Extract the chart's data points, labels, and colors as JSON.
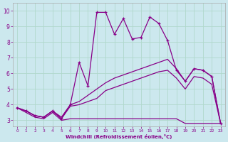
{
  "xlabel": "Windchill (Refroidissement éolien,°C)",
  "xlim": [
    -0.5,
    23.5
  ],
  "ylim": [
    2.6,
    10.5
  ],
  "background_color": "#cce8ee",
  "grid_color": "#b0d8cc",
  "line_color": "#880088",
  "x_ticks": [
    0,
    1,
    2,
    3,
    4,
    5,
    6,
    7,
    8,
    9,
    10,
    11,
    12,
    13,
    14,
    15,
    16,
    17,
    18,
    19,
    20,
    21,
    22,
    23
  ],
  "y_ticks": [
    3,
    4,
    5,
    6,
    7,
    8,
    9,
    10
  ],
  "series_main": [
    3.8,
    3.6,
    3.3,
    3.2,
    3.6,
    3.1,
    4.0,
    6.7,
    5.2,
    9.9,
    9.9,
    8.5,
    9.5,
    8.2,
    8.3,
    9.6,
    9.2,
    8.1,
    6.2,
    5.5,
    6.3,
    6.2,
    5.8,
    2.8
  ],
  "series_mid_upper": [
    3.8,
    3.6,
    3.3,
    3.2,
    3.6,
    3.2,
    4.0,
    4.2,
    4.6,
    5.0,
    5.4,
    5.7,
    5.9,
    6.1,
    6.3,
    6.5,
    6.7,
    6.9,
    6.3,
    5.5,
    6.3,
    6.2,
    5.8,
    2.8
  ],
  "series_mid_lower": [
    3.8,
    3.6,
    3.3,
    3.2,
    3.6,
    3.1,
    3.9,
    4.0,
    4.2,
    4.4,
    4.9,
    5.1,
    5.3,
    5.5,
    5.7,
    5.9,
    6.1,
    6.2,
    5.7,
    5.0,
    5.8,
    5.7,
    5.3,
    2.8
  ],
  "series_flat": [
    3.8,
    3.5,
    3.2,
    3.1,
    3.5,
    3.0,
    3.1,
    3.1,
    3.1,
    3.1,
    3.1,
    3.1,
    3.1,
    3.1,
    3.1,
    3.1,
    3.1,
    3.1,
    3.1,
    2.8,
    2.8,
    2.8,
    2.8,
    2.8
  ]
}
